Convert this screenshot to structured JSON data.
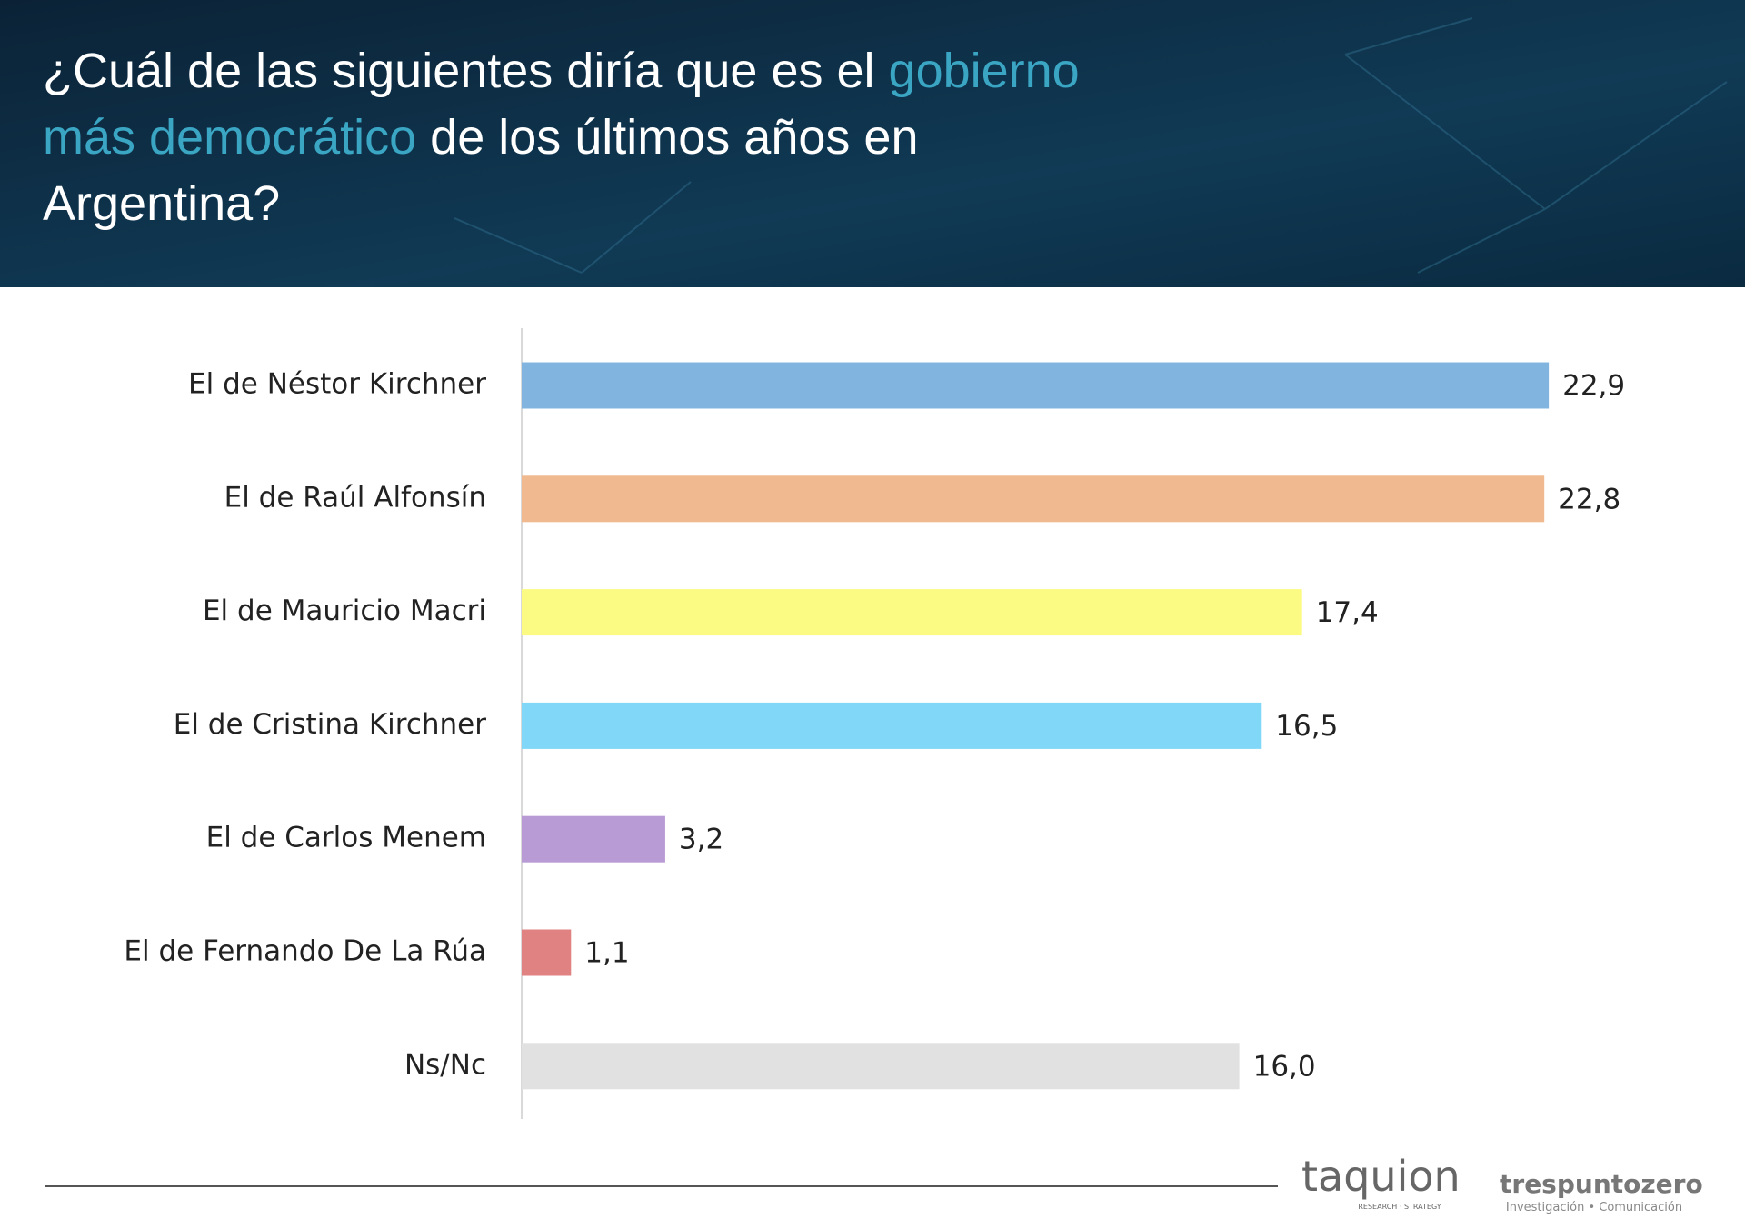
{
  "chart_data": {
    "type": "bar",
    "orientation": "horizontal",
    "title_lines": [
      [
        {
          "text": "¿Cuál de las siguientes diría que es el ",
          "highlight": false
        },
        {
          "text": "gobierno",
          "highlight": true
        }
      ],
      [
        {
          "text": "más democrático",
          "highlight": true
        },
        {
          "text": " de los últimos años en",
          "highlight": false
        }
      ],
      [
        {
          "text": "Argentina?",
          "highlight": false
        }
      ]
    ],
    "categories": [
      "El de Néstor Kirchner",
      "El de Raúl Alfonsín",
      "El de Mauricio Macri",
      "El de Cristina Kirchner",
      "El de Carlos Menem",
      "El de Fernando De La Rúa",
      "Ns/Nc"
    ],
    "values": [
      22.9,
      22.8,
      17.4,
      16.5,
      3.2,
      1.1,
      16.0
    ],
    "value_labels": [
      "22,9",
      "22,8",
      "17,4",
      "16,5",
      "3,2",
      "1,1",
      "16,0"
    ],
    "colors": [
      "#82b4e0",
      "#f0b98f",
      "#fbfb84",
      "#80d7f7",
      "#b89bd4",
      "#e08182",
      "#e1e1e1"
    ]
  },
  "footer": {
    "logos": [
      {
        "name": "taquion",
        "tagline": "RESEARCH · STRATEGY"
      },
      {
        "name": "trespuntozero",
        "tagline": "Investigación • Comunicación"
      }
    ]
  }
}
